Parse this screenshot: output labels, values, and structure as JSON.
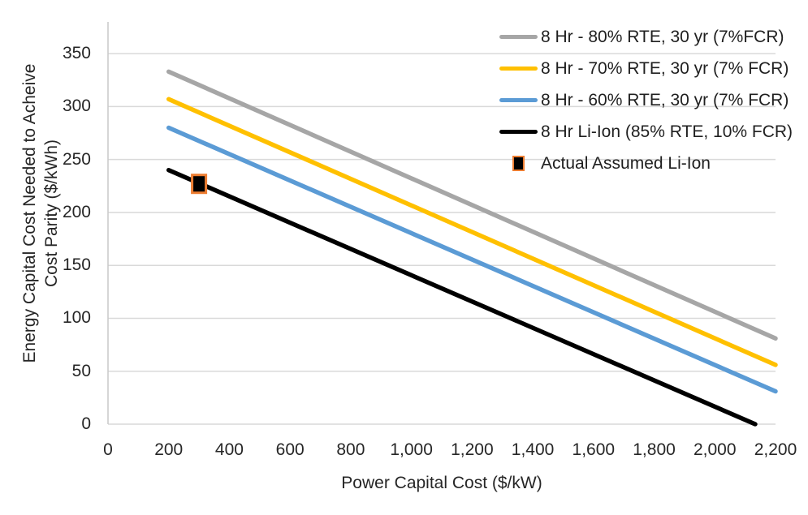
{
  "chart_data": {
    "type": "line",
    "title": "",
    "xlabel": "Power Capital Cost ($/kW)",
    "ylabel": "Energy Capital Cost Needed to Acheive Cost Parity ($/kWh)",
    "ylabel_lines": [
      "Energy Capital Cost Needed to Acheive",
      "Cost Parity ($/kWh)"
    ],
    "xlim": [
      0,
      2200
    ],
    "ylim": [
      0,
      380
    ],
    "grid": "horizontal-only",
    "legend_position": "top-right",
    "x_ticks": {
      "values": [
        0,
        200,
        400,
        600,
        800,
        1000,
        1200,
        1400,
        1600,
        1800,
        2000,
        2200
      ],
      "labels": [
        "0",
        "200",
        "400",
        "600",
        "800",
        "1,000",
        "1,200",
        "1,400",
        "1,600",
        "1,800",
        "2,000",
        "2,200"
      ]
    },
    "y_ticks": {
      "values": [
        0,
        50,
        100,
        150,
        200,
        250,
        300,
        350
      ],
      "labels": [
        "0",
        "50",
        "100",
        "150",
        "200",
        "250",
        "300",
        "350"
      ]
    },
    "series": [
      {
        "name": "8 Hr - 80% RTE, 30 yr (7%FCR)",
        "color": "#A6A6A6",
        "x": [
          200,
          2200
        ],
        "y": [
          333,
          81
        ]
      },
      {
        "name": "8 Hr - 70% RTE, 30 yr (7% FCR)",
        "color": "#FFC000",
        "x": [
          200,
          2200
        ],
        "y": [
          307,
          56
        ]
      },
      {
        "name": "8 Hr - 60% RTE, 30 yr (7% FCR)",
        "color": "#5B9BD5",
        "x": [
          200,
          2200
        ],
        "y": [
          280,
          31
        ]
      },
      {
        "name": "8 Hr Li-Ion (85% RTE, 10% FCR)",
        "color": "#000000",
        "x": [
          200,
          2133
        ],
        "y": [
          240,
          0
        ]
      }
    ],
    "point_series": [
      {
        "name": "Actual Assumed Li-Ion",
        "x": 300,
        "y": 227,
        "marker_fill": "#000000",
        "marker_border": "#ED7D31",
        "marker_shape": "square"
      }
    ],
    "colors": {
      "gridline": "#D9D9D9",
      "axis_line": "#C9C9C9",
      "tick_text": "#262626",
      "legend_text": "#1F1F1F",
      "marker_border": "#ED7D31"
    }
  }
}
